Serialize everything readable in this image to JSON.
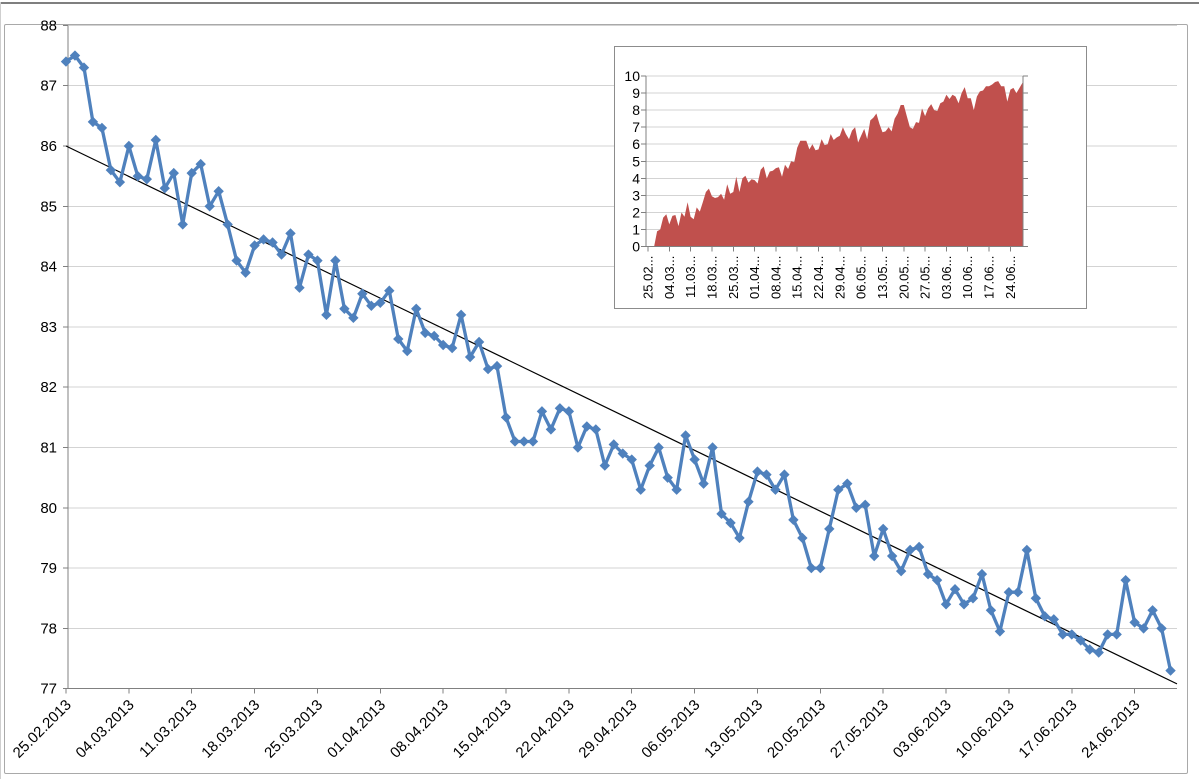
{
  "window": {
    "frame_top_color": "#7f7f7f",
    "chart_border_color": "#a9a9a9",
    "background": "#ffffff"
  },
  "style": {
    "axis_color": "#808080",
    "grid_color": "#d3d3d3",
    "text_color": "#000000",
    "series_blue": "#4F81BD",
    "series_red": "#C0504D",
    "trend_color": "#000000"
  },
  "chart_data": [
    {
      "id": "main",
      "type": "line",
      "title": "",
      "legend": "none",
      "grid": "horizontal",
      "ylim": [
        77,
        88
      ],
      "y_tick_step": 1,
      "x_label_step": 7,
      "x_tick_labels": [
        "25.02.2013",
        "04.03.2013",
        "11.03.2013",
        "18.03.2013",
        "25.03.2013",
        "01.04.2013",
        "08.04.2013",
        "15.04.2013",
        "22.04.2013",
        "29.04.2013",
        "06.05.2013",
        "13.05.2013",
        "20.05.2013",
        "27.05.2013",
        "03.06.2013",
        "10.06.2013",
        "17.06.2013",
        "24.06.2013"
      ],
      "series": [
        {
          "name": "daily-values",
          "color": "#4F81BD",
          "marker": "diamond",
          "values": [
            87.4,
            87.5,
            87.3,
            86.4,
            86.3,
            85.6,
            85.4,
            86.0,
            85.5,
            85.45,
            86.1,
            85.3,
            85.55,
            84.7,
            85.55,
            85.7,
            85.0,
            85.25,
            84.7,
            84.1,
            83.9,
            84.35,
            84.45,
            84.4,
            84.2,
            84.55,
            83.65,
            84.2,
            84.1,
            83.2,
            84.1,
            83.3,
            83.15,
            83.55,
            83.35,
            83.4,
            83.6,
            82.8,
            82.6,
            83.3,
            82.9,
            82.85,
            82.7,
            82.65,
            83.2,
            82.5,
            82.75,
            82.3,
            82.35,
            81.5,
            81.1,
            81.1,
            81.1,
            81.6,
            81.3,
            81.65,
            81.6,
            81.0,
            81.35,
            81.3,
            80.7,
            81.05,
            80.9,
            80.8,
            80.3,
            80.7,
            81.0,
            80.5,
            80.3,
            81.2,
            80.8,
            80.4,
            81.0,
            79.9,
            79.75,
            79.5,
            80.1,
            80.6,
            80.55,
            80.3,
            80.55,
            79.8,
            79.5,
            79.0,
            79.0,
            79.65,
            80.3,
            80.4,
            80.0,
            80.05,
            79.2,
            79.65,
            79.2,
            78.95,
            79.3,
            79.35,
            78.9,
            78.8,
            78.4,
            78.65,
            78.4,
            78.5,
            78.9,
            78.3,
            77.95,
            78.6,
            78.6,
            79.3,
            78.5,
            78.2,
            78.15,
            77.9,
            77.9,
            77.8,
            77.65,
            77.6,
            77.9,
            77.9,
            78.8,
            78.1,
            78.0,
            78.3,
            78.0,
            77.3
          ]
        }
      ],
      "trendline": {
        "color": "#000000",
        "start_value": 86.0,
        "end_value": 77.08
      }
    },
    {
      "id": "inset",
      "type": "area",
      "position": "overlay-top-right",
      "title": "",
      "legend": "none",
      "grid": "horizontal",
      "ylim": [
        0,
        10
      ],
      "y_tick_step": 1,
      "x_label_step": 7,
      "x_tick_labels": [
        "25.02...",
        "04.03...",
        "11.03...",
        "18.03...",
        "25.03...",
        "01.04...",
        "08.04...",
        "15.04...",
        "22.04...",
        "29.04...",
        "06.05...",
        "13.05...",
        "20.05...",
        "27.05...",
        "03.06...",
        "10.06...",
        "17.06...",
        "24.06..."
      ],
      "series": [
        {
          "name": "cumulative-decline",
          "color": "#C0504D",
          "values": [
            0,
            0,
            0,
            0.9,
            1.0,
            1.7,
            1.9,
            1.3,
            1.8,
            1.85,
            1.2,
            2.0,
            1.75,
            2.6,
            1.75,
            1.6,
            2.3,
            2.05,
            2.6,
            3.2,
            3.4,
            2.95,
            2.85,
            2.9,
            3.1,
            2.75,
            3.65,
            3.1,
            3.2,
            4.1,
            3.2,
            4.0,
            4.15,
            3.75,
            3.95,
            3.9,
            3.7,
            4.5,
            4.7,
            4.0,
            4.4,
            4.45,
            4.6,
            4.65,
            4.1,
            4.8,
            4.55,
            5.0,
            4.95,
            5.8,
            6.2,
            6.2,
            6.2,
            5.7,
            6.0,
            5.65,
            5.7,
            6.3,
            5.95,
            6.0,
            6.6,
            6.25,
            6.4,
            6.5,
            7.0,
            6.6,
            6.3,
            6.8,
            7.0,
            6.1,
            6.5,
            6.9,
            6.3,
            7.4,
            7.55,
            7.8,
            7.2,
            6.7,
            6.75,
            7.0,
            6.75,
            7.5,
            7.8,
            8.3,
            8.3,
            7.65,
            7.0,
            6.9,
            7.3,
            7.25,
            8.1,
            7.65,
            8.1,
            8.35,
            8.0,
            7.95,
            8.4,
            8.5,
            8.9,
            8.65,
            8.9,
            8.8,
            8.4,
            9.0,
            9.35,
            8.7,
            8.7,
            8.0,
            8.8,
            9.1,
            9.15,
            9.4,
            9.4,
            9.5,
            9.65,
            9.7,
            9.4,
            9.4,
            8.5,
            9.2,
            9.3,
            9.0,
            9.3,
            9.6
          ]
        }
      ]
    }
  ]
}
